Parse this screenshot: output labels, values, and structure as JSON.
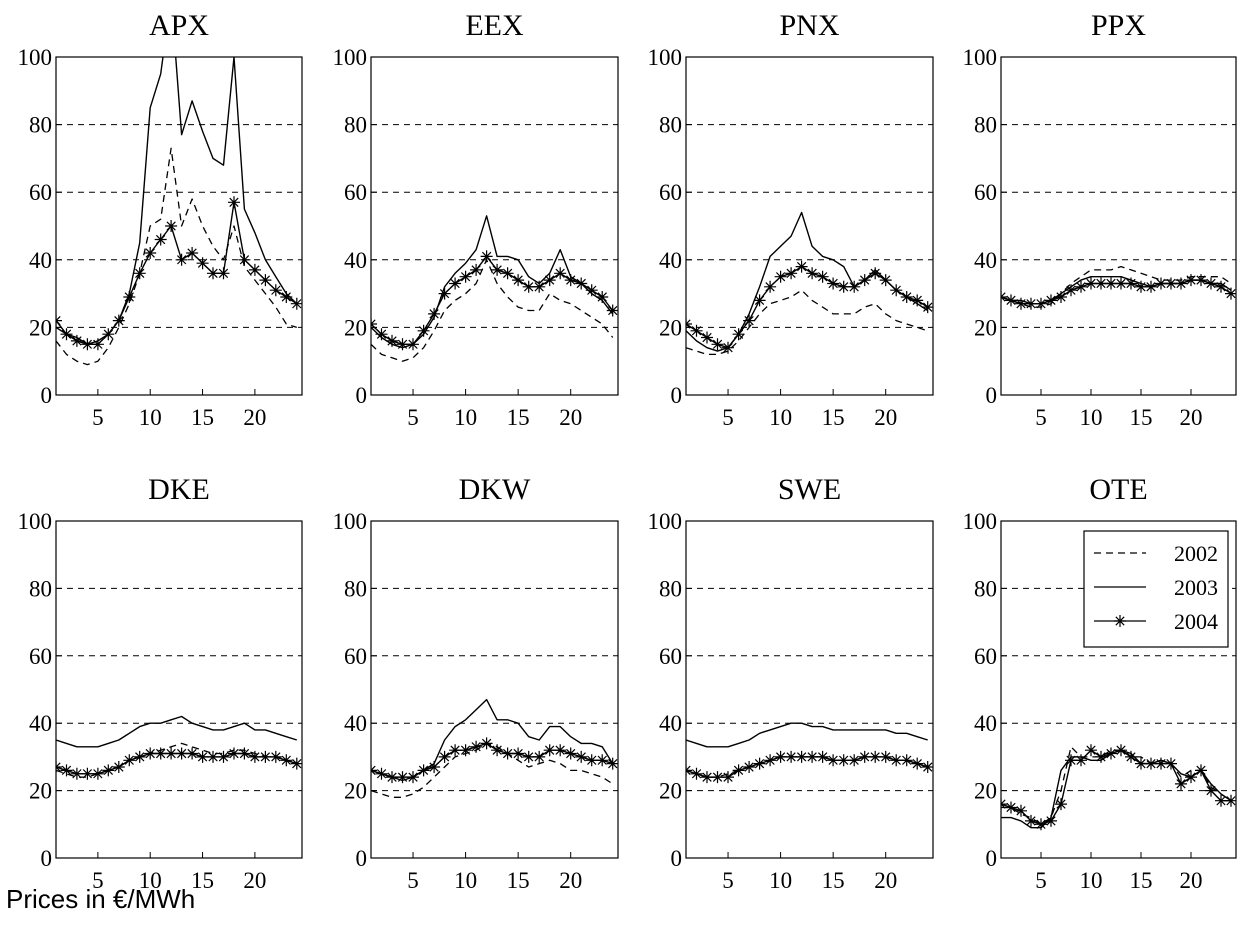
{
  "caption": "Prices in €/MWh",
  "chart_data": [
    {
      "type": "line",
      "title": "APX",
      "x": [
        1,
        2,
        3,
        4,
        5,
        6,
        7,
        8,
        9,
        10,
        11,
        12,
        13,
        14,
        15,
        16,
        17,
        18,
        19,
        20,
        21,
        22,
        23,
        24
      ],
      "xticks": [
        5,
        10,
        15,
        20
      ],
      "ylim": [
        0,
        100
      ],
      "yticks": [
        0,
        20,
        40,
        60,
        80,
        100
      ],
      "grid": "horizontal dashed",
      "series": [
        {
          "name": "2002",
          "values": [
            16,
            12,
            10,
            9,
            10,
            14,
            20,
            27,
            36,
            50,
            52,
            73,
            50,
            58,
            50,
            44,
            40,
            50,
            38,
            34,
            30,
            26,
            21,
            20
          ]
        },
        {
          "name": "2003",
          "values": [
            20,
            18,
            17,
            15,
            16,
            18,
            22,
            30,
            45,
            85,
            95,
            118,
            77,
            87,
            78,
            70,
            68,
            100,
            55,
            48,
            40,
            35,
            30,
            27
          ]
        },
        {
          "name": "2004",
          "values": [
            22,
            18,
            16,
            15,
            15,
            18,
            22,
            29,
            36,
            42,
            46,
            50,
            40,
            42,
            39,
            36,
            36,
            57,
            40,
            37,
            34,
            31,
            29,
            27
          ]
        }
      ]
    },
    {
      "type": "line",
      "title": "EEX",
      "x": [
        1,
        2,
        3,
        4,
        5,
        6,
        7,
        8,
        9,
        10,
        11,
        12,
        13,
        14,
        15,
        16,
        17,
        18,
        19,
        20,
        21,
        22,
        23,
        24
      ],
      "xticks": [
        5,
        10,
        15,
        20
      ],
      "ylim": [
        0,
        100
      ],
      "yticks": [
        0,
        20,
        40,
        60,
        80,
        100
      ],
      "grid": "horizontal dashed",
      "series": [
        {
          "name": "2002",
          "values": [
            15,
            12,
            11,
            10,
            11,
            14,
            19,
            25,
            28,
            30,
            33,
            40,
            33,
            29,
            26,
            25,
            25,
            30,
            28,
            27,
            25,
            23,
            21,
            17
          ]
        },
        {
          "name": "2003",
          "values": [
            20,
            17,
            15,
            14,
            15,
            18,
            23,
            32,
            36,
            39,
            43,
            53,
            41,
            41,
            40,
            35,
            33,
            36,
            43,
            35,
            33,
            30,
            28,
            24
          ]
        },
        {
          "name": "2004",
          "values": [
            21,
            18,
            16,
            15,
            15,
            19,
            24,
            30,
            33,
            35,
            37,
            41,
            37,
            36,
            34,
            32,
            32,
            34,
            36,
            34,
            33,
            31,
            29,
            25
          ]
        }
      ]
    },
    {
      "type": "line",
      "title": "PNX",
      "x": [
        1,
        2,
        3,
        4,
        5,
        6,
        7,
        8,
        9,
        10,
        11,
        12,
        13,
        14,
        15,
        16,
        17,
        18,
        19,
        20,
        21,
        22,
        23,
        24
      ],
      "xticks": [
        5,
        10,
        15,
        20
      ],
      "ylim": [
        0,
        100
      ],
      "yticks": [
        0,
        20,
        40,
        60,
        80,
        100
      ],
      "grid": "horizontal dashed",
      "series": [
        {
          "name": "2002",
          "values": [
            14,
            13,
            12,
            12,
            13,
            16,
            20,
            24,
            27,
            28,
            29,
            31,
            28,
            26,
            24,
            24,
            24,
            26,
            27,
            24,
            22,
            21,
            20,
            19
          ]
        },
        {
          "name": "2003",
          "values": [
            19,
            16,
            14,
            13,
            14,
            18,
            24,
            32,
            41,
            44,
            47,
            54,
            44,
            41,
            40,
            38,
            32,
            34,
            37,
            34,
            31,
            29,
            27,
            25
          ]
        },
        {
          "name": "2004",
          "values": [
            21,
            19,
            17,
            15,
            14,
            18,
            22,
            28,
            32,
            35,
            36,
            38,
            36,
            35,
            33,
            32,
            32,
            34,
            36,
            34,
            31,
            29,
            28,
            26
          ]
        }
      ]
    },
    {
      "type": "line",
      "title": "PPX",
      "x": [
        1,
        2,
        3,
        4,
        5,
        6,
        7,
        8,
        9,
        10,
        11,
        12,
        13,
        14,
        15,
        16,
        17,
        18,
        19,
        20,
        21,
        22,
        23,
        24
      ],
      "xticks": [
        5,
        10,
        15,
        20
      ],
      "ylim": [
        0,
        100
      ],
      "yticks": [
        0,
        20,
        40,
        60,
        80,
        100
      ],
      "grid": "horizontal dashed",
      "series": [
        {
          "name": "2002",
          "values": [
            29,
            28,
            27,
            26,
            26,
            27,
            30,
            33,
            35,
            37,
            37,
            37,
            38,
            37,
            36,
            35,
            34,
            34,
            34,
            35,
            35,
            35,
            35,
            33
          ]
        },
        {
          "name": "2003",
          "values": [
            29,
            28,
            28,
            27,
            27,
            28,
            30,
            32,
            34,
            35,
            35,
            35,
            35,
            34,
            33,
            32,
            33,
            33,
            33,
            34,
            34,
            33,
            33,
            31
          ]
        },
        {
          "name": "2004",
          "values": [
            29,
            28,
            27,
            27,
            27,
            28,
            29,
            31,
            32,
            33,
            33,
            33,
            33,
            33,
            32,
            32,
            33,
            33,
            33,
            34,
            34,
            33,
            32,
            30
          ]
        }
      ]
    },
    {
      "type": "line",
      "title": "DKE",
      "x": [
        1,
        2,
        3,
        4,
        5,
        6,
        7,
        8,
        9,
        10,
        11,
        12,
        13,
        14,
        15,
        16,
        17,
        18,
        19,
        20,
        21,
        22,
        23,
        24
      ],
      "xticks": [
        5,
        10,
        15,
        20
      ],
      "ylim": [
        0,
        100
      ],
      "yticks": [
        0,
        20,
        40,
        60,
        80,
        100
      ],
      "grid": "horizontal dashed",
      "series": [
        {
          "name": "2002",
          "values": [
            26,
            25,
            24,
            24,
            25,
            26,
            27,
            29,
            30,
            31,
            32,
            33,
            34,
            33,
            32,
            31,
            31,
            32,
            32,
            31,
            30,
            30,
            29,
            28
          ]
        },
        {
          "name": "2003",
          "values": [
            35,
            34,
            33,
            33,
            33,
            34,
            35,
            37,
            39,
            40,
            40,
            41,
            42,
            40,
            39,
            38,
            38,
            39,
            40,
            38,
            38,
            37,
            36,
            35
          ]
        },
        {
          "name": "2004",
          "values": [
            27,
            26,
            25,
            25,
            25,
            26,
            27,
            29,
            30,
            31,
            31,
            31,
            31,
            31,
            30,
            30,
            30,
            31,
            31,
            30,
            30,
            30,
            29,
            28
          ]
        }
      ]
    },
    {
      "type": "line",
      "title": "DKW",
      "x": [
        1,
        2,
        3,
        4,
        5,
        6,
        7,
        8,
        9,
        10,
        11,
        12,
        13,
        14,
        15,
        16,
        17,
        18,
        19,
        20,
        21,
        22,
        23,
        24
      ],
      "xticks": [
        5,
        10,
        15,
        20
      ],
      "ylim": [
        0,
        100
      ],
      "yticks": [
        0,
        20,
        40,
        60,
        80,
        100
      ],
      "grid": "horizontal dashed",
      "series": [
        {
          "name": "2002",
          "values": [
            20,
            19,
            18,
            18,
            19,
            21,
            24,
            27,
            30,
            31,
            32,
            34,
            33,
            31,
            29,
            27,
            28,
            29,
            28,
            26,
            26,
            25,
            24,
            22
          ]
        },
        {
          "name": "2003",
          "values": [
            26,
            25,
            24,
            23,
            24,
            26,
            28,
            35,
            39,
            41,
            44,
            47,
            41,
            41,
            40,
            36,
            35,
            39,
            39,
            36,
            34,
            34,
            33,
            28
          ]
        },
        {
          "name": "2004",
          "values": [
            26,
            25,
            24,
            24,
            24,
            26,
            27,
            30,
            32,
            32,
            33,
            34,
            32,
            31,
            31,
            30,
            30,
            32,
            32,
            31,
            30,
            29,
            29,
            28
          ]
        }
      ]
    },
    {
      "type": "line",
      "title": "SWE",
      "x": [
        1,
        2,
        3,
        4,
        5,
        6,
        7,
        8,
        9,
        10,
        11,
        12,
        13,
        14,
        15,
        16,
        17,
        18,
        19,
        20,
        21,
        22,
        23,
        24
      ],
      "xticks": [
        5,
        10,
        15,
        20
      ],
      "ylim": [
        0,
        100
      ],
      "yticks": [
        0,
        20,
        40,
        60,
        80,
        100
      ],
      "grid": "horizontal dashed",
      "series": [
        {
          "name": "2002",
          "values": [
            26,
            25,
            24,
            24,
            25,
            26,
            27,
            28,
            29,
            30,
            30,
            30,
            30,
            30,
            29,
            29,
            29,
            30,
            30,
            30,
            29,
            29,
            28,
            27
          ]
        },
        {
          "name": "2003",
          "values": [
            35,
            34,
            33,
            33,
            33,
            34,
            35,
            37,
            38,
            39,
            40,
            40,
            39,
            39,
            38,
            38,
            38,
            38,
            38,
            38,
            37,
            37,
            36,
            35
          ]
        },
        {
          "name": "2004",
          "values": [
            26,
            25,
            24,
            24,
            24,
            26,
            27,
            28,
            29,
            30,
            30,
            30,
            30,
            30,
            29,
            29,
            29,
            30,
            30,
            30,
            29,
            29,
            28,
            27
          ]
        }
      ]
    },
    {
      "type": "line",
      "title": "OTE",
      "x": [
        1,
        2,
        3,
        4,
        5,
        6,
        7,
        8,
        9,
        10,
        11,
        12,
        13,
        14,
        15,
        16,
        17,
        18,
        19,
        20,
        21,
        22,
        23,
        24
      ],
      "xticks": [
        5,
        10,
        15,
        20
      ],
      "ylim": [
        0,
        100
      ],
      "yticks": [
        0,
        20,
        40,
        60,
        80,
        100
      ],
      "grid": "horizontal dashed",
      "legend": "top-right",
      "series": [
        {
          "name": "2002",
          "values": [
            15,
            15,
            13,
            12,
            10,
            12,
            20,
            33,
            30,
            30,
            30,
            32,
            32,
            30,
            30,
            28,
            29,
            28,
            24,
            26,
            26,
            21,
            19,
            17
          ]
        },
        {
          "name": "2003",
          "values": [
            12,
            12,
            11,
            9,
            9,
            12,
            26,
            30,
            30,
            29,
            29,
            31,
            32,
            31,
            28,
            28,
            29,
            28,
            25,
            24,
            26,
            22,
            19,
            17
          ]
        },
        {
          "name": "2004",
          "values": [
            16,
            15,
            14,
            11,
            10,
            11,
            16,
            29,
            29,
            32,
            30,
            31,
            32,
            30,
            28,
            28,
            28,
            28,
            22,
            24,
            26,
            20,
            17,
            17
          ]
        }
      ]
    }
  ]
}
